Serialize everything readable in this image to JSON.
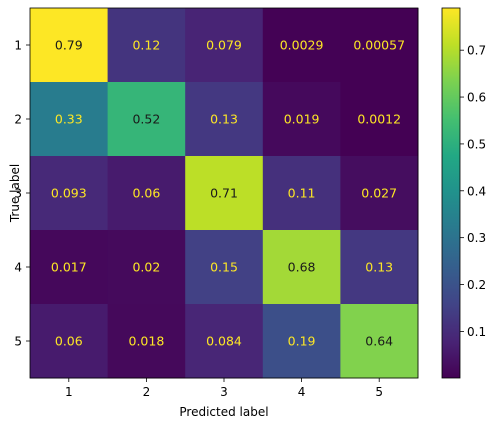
{
  "chart_data": {
    "type": "heatmap",
    "title": "",
    "xlabel": "Predicted label",
    "ylabel": "True label",
    "x_categories": [
      "1",
      "2",
      "3",
      "4",
      "5"
    ],
    "y_categories": [
      "1",
      "2",
      "3",
      "4",
      "5"
    ],
    "values": [
      [
        0.79,
        0.12,
        0.079,
        0.0029,
        0.00057
      ],
      [
        0.33,
        0.52,
        0.13,
        0.019,
        0.0012
      ],
      [
        0.093,
        0.06,
        0.71,
        0.11,
        0.027
      ],
      [
        0.017,
        0.02,
        0.15,
        0.68,
        0.13
      ],
      [
        0.06,
        0.018,
        0.084,
        0.19,
        0.64
      ]
    ],
    "cell_labels": [
      [
        "0.79",
        "0.12",
        "0.079",
        "0.0029",
        "0.00057"
      ],
      [
        "0.33",
        "0.52",
        "0.13",
        "0.019",
        "0.0012"
      ],
      [
        "0.093",
        "0.06",
        "0.71",
        "0.11",
        "0.027"
      ],
      [
        "0.017",
        "0.02",
        "0.15",
        "0.68",
        "0.13"
      ],
      [
        "0.06",
        "0.018",
        "0.084",
        "0.19",
        "0.64"
      ]
    ],
    "colormap": "viridis",
    "vmin": 0.00057,
    "vmax": 0.79,
    "colorbar_ticks": [
      0.1,
      0.2,
      0.3,
      0.4,
      0.5,
      0.6,
      0.7
    ],
    "colorbar_tick_labels": [
      "0.1",
      "0.2",
      "0.3",
      "0.4",
      "0.5",
      "0.6",
      "0.7"
    ],
    "text_color_light": "#fde725",
    "text_color_dark": "#1a1a1a",
    "grid": false,
    "legend": "colorbar-right"
  }
}
